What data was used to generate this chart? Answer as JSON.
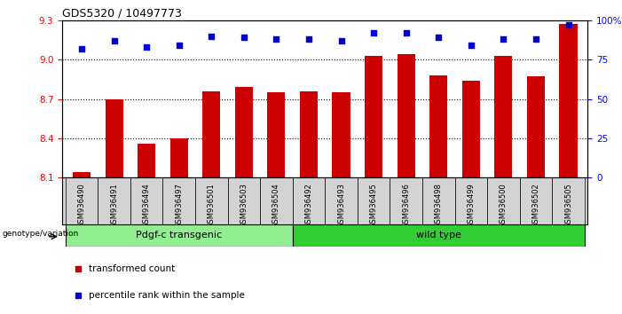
{
  "title": "GDS5320 / 10497773",
  "categories": [
    "GSM936490",
    "GSM936491",
    "GSM936494",
    "GSM936497",
    "GSM936501",
    "GSM936503",
    "GSM936504",
    "GSM936492",
    "GSM936493",
    "GSM936495",
    "GSM936496",
    "GSM936498",
    "GSM936499",
    "GSM936500",
    "GSM936502",
    "GSM936505"
  ],
  "bar_values": [
    8.14,
    8.7,
    8.36,
    8.4,
    8.76,
    8.79,
    8.75,
    8.76,
    8.75,
    9.03,
    9.04,
    8.88,
    8.84,
    9.03,
    8.87,
    9.27
  ],
  "percentile_values": [
    82,
    87,
    83,
    84,
    90,
    89,
    88,
    88,
    87,
    92,
    92,
    89,
    84,
    88,
    88,
    97
  ],
  "bar_color": "#cc0000",
  "dot_color": "#0000cc",
  "ylim_left": [
    8.1,
    9.3
  ],
  "ylim_right": [
    0,
    100
  ],
  "yticks_left": [
    8.1,
    8.4,
    8.7,
    9.0,
    9.3
  ],
  "yticks_right": [
    0,
    25,
    50,
    75,
    100
  ],
  "group1_label": "Pdgf-c transgenic",
  "group2_label": "wild type",
  "group1_count": 7,
  "group2_count": 9,
  "group1_color": "#90ee90",
  "group2_color": "#32cd32",
  "xlabel_left": "genotype/variation",
  "legend_bar": "transformed count",
  "legend_dot": "percentile rank within the sample",
  "bar_width": 0.55,
  "grid_color": "#000000",
  "bg_color": "#ffffff",
  "tick_area_color": "#d3d3d3",
  "spine_color": "#000000"
}
